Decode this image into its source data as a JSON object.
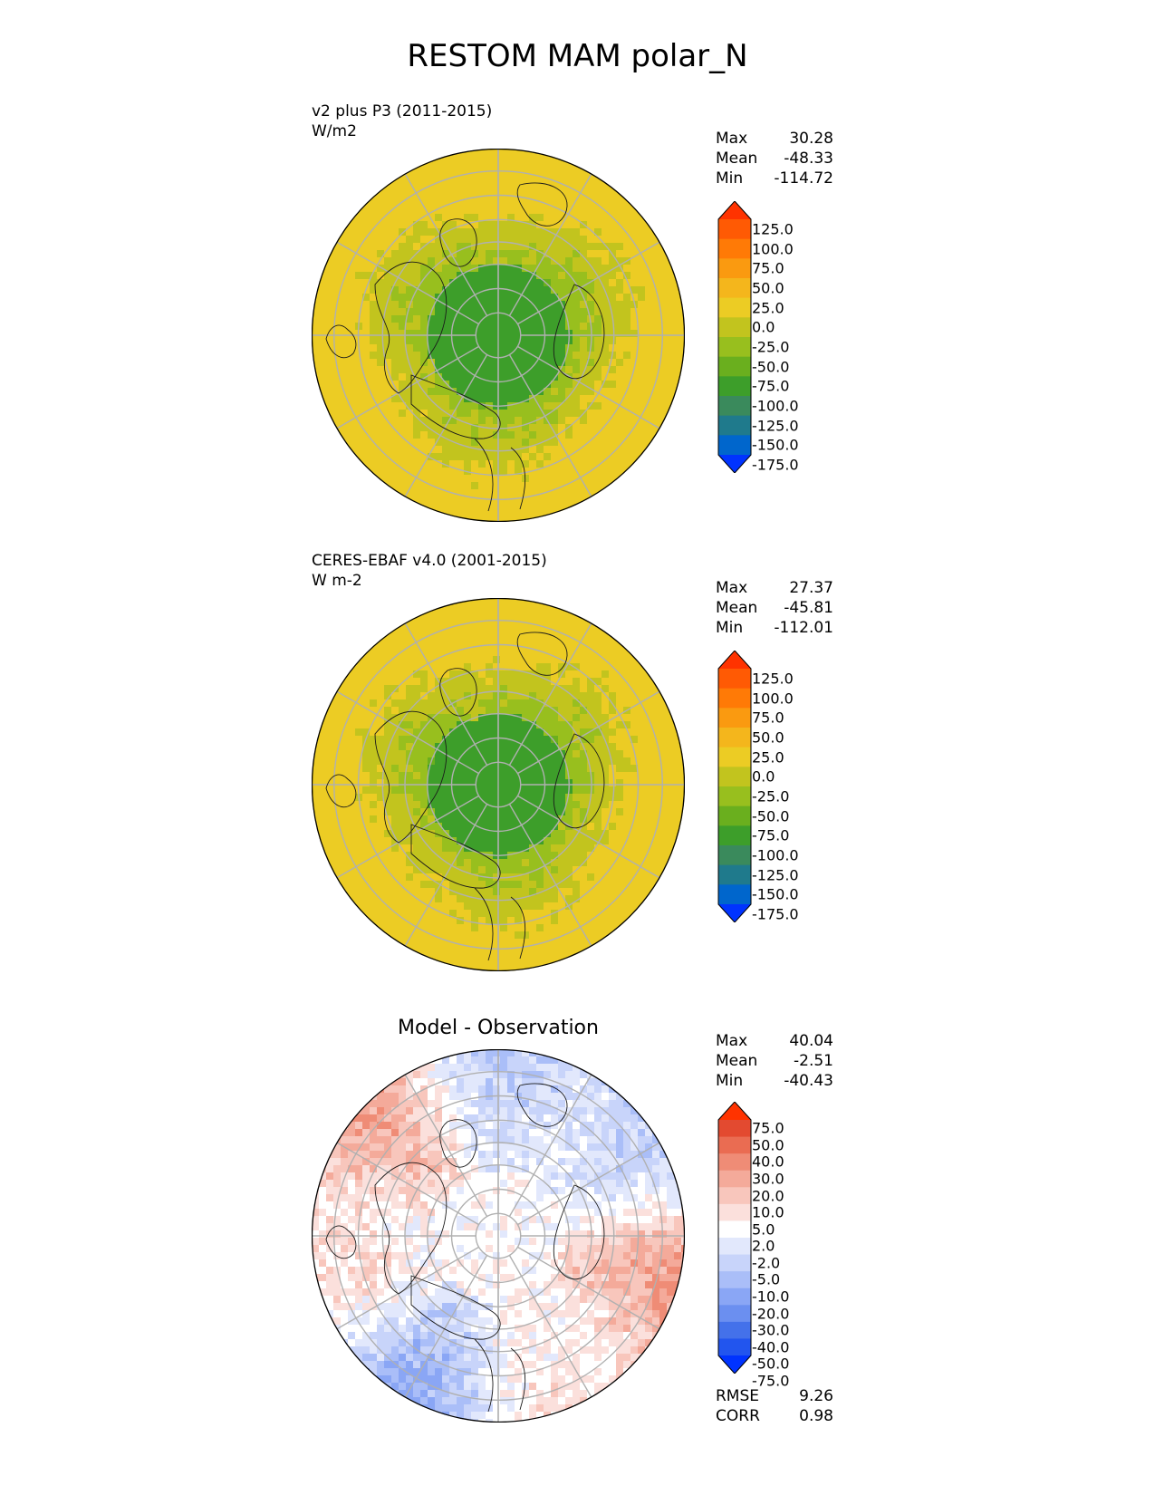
{
  "figure": {
    "title": "RESTOM MAM polar_N"
  },
  "colors": {
    "test_ref": [
      "#0033ff",
      "#0066cc",
      "#1f7a8c",
      "#3a8a5c",
      "#3d9e2a",
      "#6aaf1e",
      "#98bf1e",
      "#c2c41e",
      "#eccc24",
      "#f4b61c",
      "#fa9a10",
      "#ff7a06",
      "#ff5a04",
      "#ff3300"
    ],
    "diff": [
      "#0033ff",
      "#2255ee",
      "#4471ea",
      "#6b8ff0",
      "#8aa6f5",
      "#aabef8",
      "#c8d4fa",
      "#e2e8fc",
      "#ffffff",
      "#fbe0dc",
      "#f8c6bc",
      "#f4aa9a",
      "#ef8c76",
      "#ea6c52",
      "#e34a30",
      "#ff3300"
    ]
  },
  "panels": [
    {
      "id": "test",
      "title_line1": "v2 plus P3 (2011-2015)",
      "title_line2": "W/m2",
      "stats": [
        {
          "label": "Max",
          "value": "30.28"
        },
        {
          "label": "Mean",
          "value": "-48.33"
        },
        {
          "label": "Min",
          "value": "-114.72"
        }
      ],
      "colorbar_ticks": [
        "125.0",
        "100.0",
        "75.0",
        "50.0",
        "25.0",
        "0.0",
        "-25.0",
        "-50.0",
        "-75.0",
        "-100.0",
        "-125.0",
        "-150.0",
        "-175.0"
      ],
      "colormap": "test_ref"
    },
    {
      "id": "ref",
      "title_line1": "CERES-EBAF v4.0 (2001-2015)",
      "title_line2": "W m-2",
      "stats": [
        {
          "label": "Max",
          "value": "27.37"
        },
        {
          "label": "Mean",
          "value": "-45.81"
        },
        {
          "label": "Min",
          "value": "-112.01"
        }
      ],
      "colorbar_ticks": [
        "125.0",
        "100.0",
        "75.0",
        "50.0",
        "25.0",
        "0.0",
        "-25.0",
        "-50.0",
        "-75.0",
        "-100.0",
        "-125.0",
        "-150.0",
        "-175.0"
      ],
      "colormap": "test_ref"
    },
    {
      "id": "diff",
      "title": "Model - Observation",
      "stats": [
        {
          "label": "Max",
          "value": "40.04"
        },
        {
          "label": "Mean",
          "value": "-2.51"
        },
        {
          "label": "Min",
          "value": "-40.43"
        }
      ],
      "colorbar_ticks": [
        "75.0",
        "50.0",
        "40.0",
        "30.0",
        "20.0",
        "10.0",
        "5.0",
        "2.0",
        "-2.0",
        "-5.0",
        "-10.0",
        "-20.0",
        "-30.0",
        "-40.0",
        "-50.0",
        "-75.0"
      ],
      "colormap": "diff",
      "metrics": [
        {
          "label": "RMSE",
          "value": "9.26"
        },
        {
          "label": "CORR",
          "value": "0.98"
        }
      ]
    }
  ]
}
